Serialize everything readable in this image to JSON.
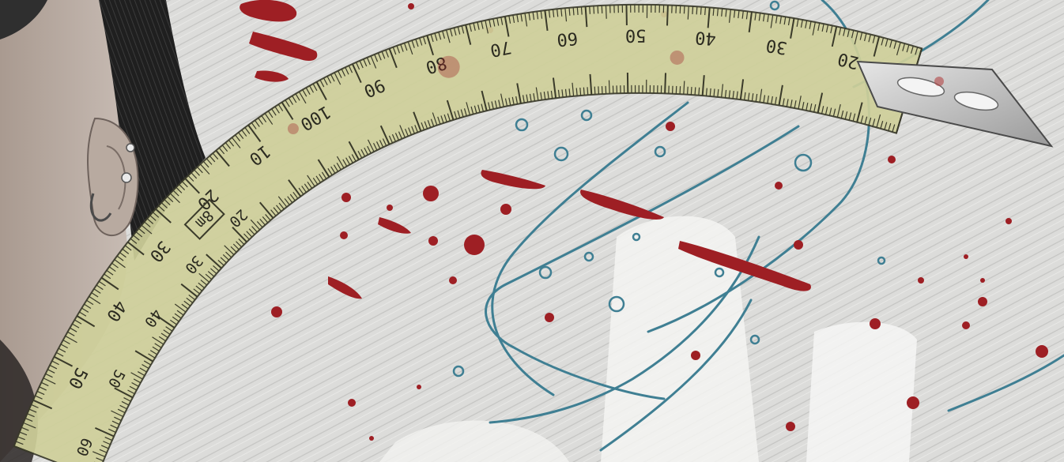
{
  "scene": {
    "colors": {
      "paper": "#dcdcda",
      "tape": "#cfd09a",
      "tape_edge": "#3a3a2a",
      "blood": "#9e1f24",
      "ink_blue": "#3f7f93",
      "skin": "#b7aaa2",
      "hair": "#1c1c1c",
      "metal": "#c9c9c9"
    },
    "icons": [
      "ear-icon",
      "earring-icon",
      "tape-hook-icon"
    ]
  },
  "tape": {
    "top_scale": [
      "20",
      "30",
      "40",
      "50",
      "60",
      "70",
      "80",
      "90",
      "100",
      "10",
      "20",
      "30",
      "40",
      "50"
    ],
    "bottom_scale": [
      "20",
      "30",
      "40",
      "50",
      "60"
    ],
    "unit_badge": "8m"
  }
}
